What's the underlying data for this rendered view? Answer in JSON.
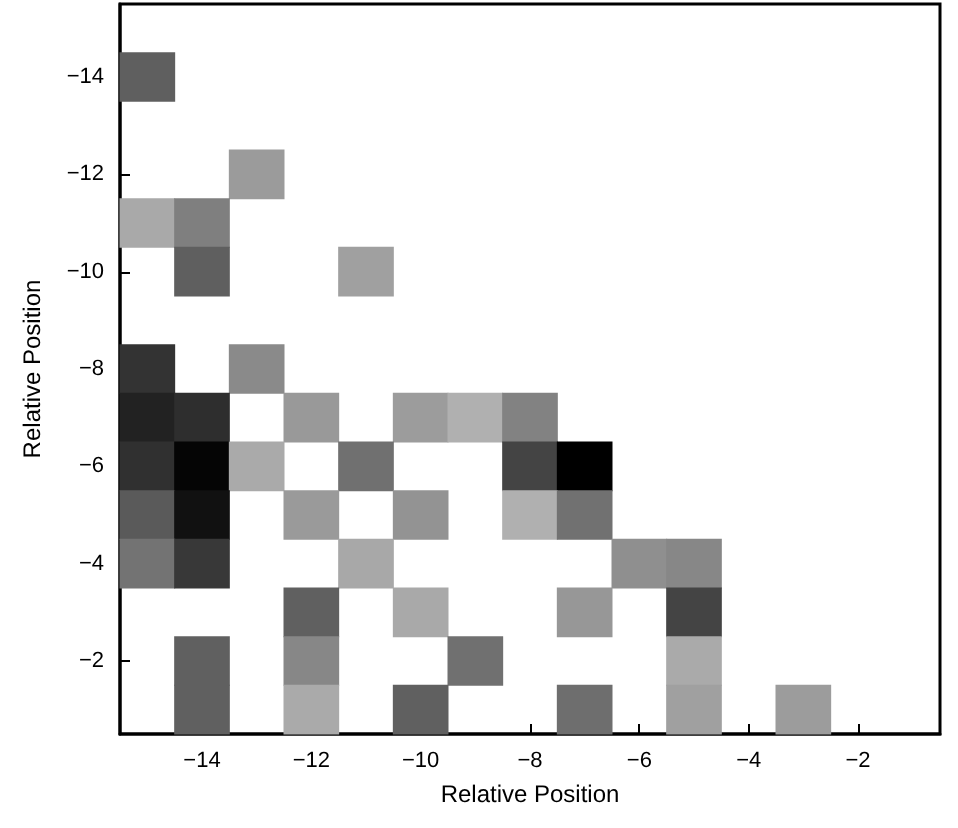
{
  "chart_data": {
    "type": "scatter",
    "xlabel": "Relative Position",
    "ylabel": "Relative Position",
    "marker": "square",
    "xlim": [
      -15.5,
      -0.5
    ],
    "ylim": [
      -0.5,
      -15.5
    ],
    "xticks": [
      -14,
      -12,
      -10,
      -8,
      -6,
      -4,
      -2
    ],
    "yticks": [
      -14,
      -12,
      -10,
      -8,
      -6,
      -4,
      -2
    ],
    "series": [
      {
        "x": [
          -15,
          -13,
          -15,
          -14,
          -14,
          -11,
          -15,
          -13,
          -15,
          -14,
          -12,
          -10,
          -9,
          -8,
          -15,
          -14,
          -13,
          -11,
          -8,
          -7,
          -15,
          -14,
          -12,
          -10,
          -8,
          -7,
          -15,
          -14,
          -11,
          -6,
          -5,
          -12,
          -10,
          -7,
          -5,
          -14,
          -12,
          -9,
          -5,
          -14,
          -12,
          -10,
          -7,
          -5,
          -3
        ],
        "values": [
          -14,
          -12,
          -11,
          -11,
          -10,
          -10,
          -8,
          -8,
          -7,
          -7,
          -7,
          -7,
          -7,
          -7,
          -6,
          -6,
          -6,
          -6,
          -6,
          -6,
          -5,
          -5,
          -5,
          -5,
          -5,
          -5,
          -4,
          -4,
          -4,
          -4,
          -4,
          -3,
          -3,
          -3,
          -3,
          -2,
          -2,
          -2,
          -2,
          -1,
          -1,
          -1,
          -1,
          -1,
          -1
        ],
        "colors": [
          "#5f5f5f",
          "#9b9b9b",
          "#a9a9a9",
          "#7f7f7f",
          "#5f5f5f",
          "#a0a0a0",
          "#333333",
          "#8a8a8a",
          "#222222",
          "#2e2e2e",
          "#999999",
          "#9c9c9c",
          "#b0b0b0",
          "#828282",
          "#303030",
          "#050505",
          "#aaaaaa",
          "#707070",
          "#444444",
          "#000000",
          "#5a5a5a",
          "#111111",
          "#9a9a9a",
          "#939393",
          "#b0b0b0",
          "#717171",
          "#737373",
          "#383838",
          "#a8a8a8",
          "#8f8f8f",
          "#878787",
          "#606060",
          "#a9a9a9",
          "#979797",
          "#444444",
          "#606060",
          "#878787",
          "#707070",
          "#aaaaaa",
          "#606060",
          "#aaaaaa",
          "#606060",
          "#6e6e6e",
          "#a0a0a0",
          "#9c9c9c"
        ]
      }
    ]
  }
}
